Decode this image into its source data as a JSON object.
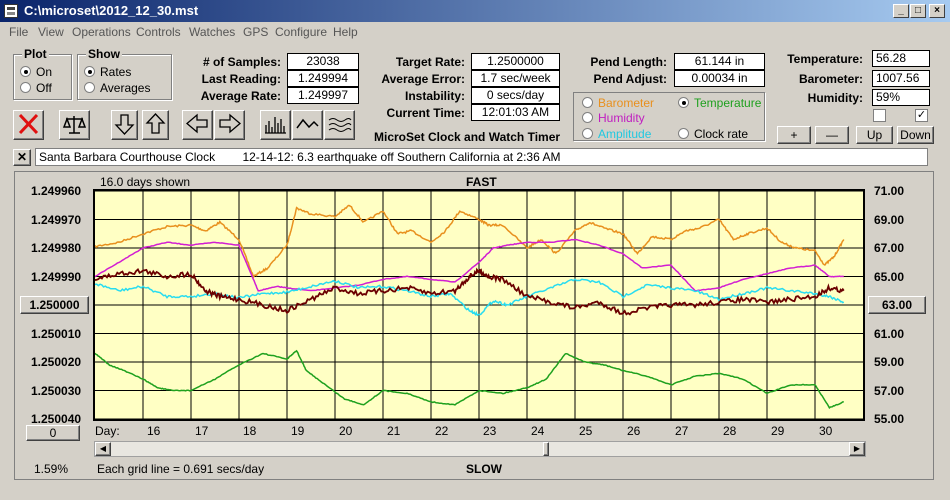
{
  "window": {
    "title": "C:\\microset\\2012_12_30.mst"
  },
  "menu": [
    "File",
    "View",
    "Operations",
    "Controls",
    "Watches",
    "GPS",
    "Configure",
    "Help"
  ],
  "plot_group": {
    "label": "Plot",
    "on": "On",
    "off": "Off",
    "selected": "On"
  },
  "show_group": {
    "label": "Show",
    "rates": "Rates",
    "averages": "Averages",
    "selected": "Rates"
  },
  "stats": {
    "samples_label": "# of Samples:",
    "samples": "23038",
    "last_reading_label": "Last Reading:",
    "last_reading": "1.249994",
    "average_rate_label": "Average Rate:",
    "average_rate": "1.249997",
    "target_rate_label": "Target Rate:",
    "target_rate": "1.2500000",
    "average_error_label": "Average Error:",
    "average_error": "1.7 sec/week",
    "instability_label": "Instability:",
    "instability": "0 secs/day",
    "current_time_label": "Current Time:",
    "current_time": "12:01:03 AM",
    "pend_length_label": "Pend Length:",
    "pend_length": "61.144 in",
    "pend_adjust_label": "Pend Adjust:",
    "pend_adjust": "0.00034 in",
    "temperature_label": "Temperature:",
    "temperature": "56.28",
    "barometer_label": "Barometer:",
    "barometer": "1007.56",
    "humidity_label": "Humidity:",
    "humidity": "59%"
  },
  "app_name": "MicroSet Clock and Watch Timer",
  "aux_select": {
    "barometer": "Barometer",
    "temperature": "Temperature",
    "humidity": "Humidity",
    "amplitude": "Amplitude",
    "clock_rate": "Clock rate",
    "selected": "Temperature"
  },
  "aux_buttons": {
    "plus": "+",
    "minus": "—",
    "up": "Up",
    "down": "Down"
  },
  "note": {
    "clock": "Santa Barbara Courthouse Clock",
    "text": "12-14-12: 6.3 earthquake off Southern California at 2:36 AM"
  },
  "plot": {
    "days_shown": "16.0 days shown",
    "fast_label": "FAST",
    "slow_label": "SLOW",
    "center_value": "1.250000",
    "right_center_value": "63.00",
    "x_offset_value": "0",
    "percent": "1.59%",
    "grid_note": "Each grid line = 0.691 secs/day",
    "day_prefix": "Day:"
  },
  "colors": {
    "background": "#ffffc4",
    "rate": "#6b0000",
    "temperature": "#1ea01e",
    "humidity": "#d21ed2",
    "amplitude": "#28dcf0",
    "barometer": "#e8901e"
  },
  "chart_data": {
    "type": "line",
    "left_axis": {
      "ticks": [
        "1.249960",
        "1.249970",
        "1.249980",
        "1.249990",
        "1.250000",
        "1.250010",
        "1.250020",
        "1.250030",
        "1.250040"
      ],
      "range": [
        1.24996,
        1.25004
      ]
    },
    "right_axis": {
      "ticks": [
        "71.00",
        "69.00",
        "67.00",
        "65.00",
        "63.00",
        "61.00",
        "59.00",
        "57.00",
        "55.00"
      ],
      "range": [
        55,
        71
      ]
    },
    "x": {
      "ticks": [
        16,
        17,
        18,
        19,
        20,
        21,
        22,
        23,
        24,
        25,
        26,
        27,
        28,
        29,
        30
      ],
      "range": [
        15.0,
        31.0
      ]
    },
    "series": [
      {
        "key": "barometer",
        "axis": "right",
        "values": [
          [
            15.0,
            67.1
          ],
          [
            15.5,
            67.4
          ],
          [
            16.0,
            68.0
          ],
          [
            16.5,
            68.5
          ],
          [
            17.0,
            68.6
          ],
          [
            17.3,
            68.2
          ],
          [
            17.6,
            68.8
          ],
          [
            18.0,
            67.6
          ],
          [
            18.3,
            65.0
          ],
          [
            18.6,
            65.6
          ],
          [
            19.0,
            67.2
          ],
          [
            19.2,
            69.8
          ],
          [
            19.5,
            69.4
          ],
          [
            20.0,
            69.2
          ],
          [
            20.3,
            70.0
          ],
          [
            20.6,
            68.8
          ],
          [
            21.0,
            69.6
          ],
          [
            21.3,
            68.0
          ],
          [
            21.6,
            68.2
          ],
          [
            22.0,
            67.4
          ],
          [
            22.3,
            68.2
          ],
          [
            22.6,
            69.6
          ],
          [
            23.0,
            69.0
          ],
          [
            23.2,
            68.6
          ],
          [
            23.5,
            68.6
          ],
          [
            24.0,
            67.0
          ],
          [
            24.3,
            67.6
          ],
          [
            24.6,
            66.6
          ],
          [
            25.0,
            68.2
          ],
          [
            25.3,
            68.8
          ],
          [
            25.6,
            68.4
          ],
          [
            26.0,
            68.0
          ],
          [
            26.3,
            66.6
          ],
          [
            26.6,
            67.8
          ],
          [
            27.0,
            67.6
          ],
          [
            27.3,
            68.2
          ],
          [
            27.6,
            68.4
          ],
          [
            28.0,
            69.0
          ],
          [
            28.3,
            67.6
          ],
          [
            28.6,
            68.0
          ],
          [
            29.0,
            68.4
          ],
          [
            29.3,
            67.4
          ],
          [
            29.6,
            67.0
          ],
          [
            30.0,
            66.8
          ],
          [
            30.2,
            65.8
          ],
          [
            30.4,
            66.4
          ],
          [
            30.6,
            67.6
          ]
        ]
      },
      {
        "key": "humidity",
        "axis": "right",
        "values": [
          [
            15.0,
            65.0
          ],
          [
            15.5,
            66.0
          ],
          [
            16.0,
            67.0
          ],
          [
            16.5,
            67.4
          ],
          [
            17.0,
            67.2
          ],
          [
            17.5,
            67.4
          ],
          [
            18.0,
            67.2
          ],
          [
            18.2,
            65.6
          ],
          [
            18.4,
            64.0
          ],
          [
            18.8,
            64.3
          ],
          [
            19.0,
            64.2
          ],
          [
            19.5,
            64.0
          ],
          [
            20.0,
            64.2
          ],
          [
            20.5,
            64.4
          ],
          [
            21.0,
            64.8
          ],
          [
            21.5,
            65.0
          ],
          [
            22.0,
            64.8
          ],
          [
            22.5,
            64.6
          ],
          [
            23.0,
            66.0
          ],
          [
            23.3,
            67.0
          ],
          [
            23.6,
            67.2
          ],
          [
            24.0,
            67.4
          ],
          [
            24.5,
            67.4
          ],
          [
            25.0,
            67.6
          ],
          [
            25.5,
            67.2
          ],
          [
            26.0,
            66.6
          ],
          [
            26.4,
            65.6
          ],
          [
            27.0,
            65.8
          ],
          [
            27.5,
            64.0
          ],
          [
            28.0,
            64.2
          ],
          [
            28.5,
            64.8
          ],
          [
            29.0,
            65.2
          ],
          [
            29.5,
            65.6
          ],
          [
            30.0,
            65.8
          ],
          [
            30.3,
            65.0
          ],
          [
            30.6,
            65.0
          ]
        ]
      },
      {
        "key": "amplitude",
        "axis": "right",
        "values": [
          [
            15.0,
            64.5
          ],
          [
            15.5,
            64.0
          ],
          [
            16.0,
            64.3
          ],
          [
            16.5,
            63.6
          ],
          [
            17.0,
            63.6
          ],
          [
            17.5,
            63.8
          ],
          [
            18.0,
            63.5
          ],
          [
            18.5,
            63.8
          ],
          [
            19.0,
            63.9
          ],
          [
            19.5,
            64.3
          ],
          [
            20.0,
            64.7
          ],
          [
            20.5,
            64.2
          ],
          [
            21.0,
            64.3
          ],
          [
            21.5,
            64.0
          ],
          [
            22.0,
            63.6
          ],
          [
            22.4,
            63.8
          ],
          [
            22.8,
            62.6
          ],
          [
            23.0,
            62.3
          ],
          [
            23.3,
            63.3
          ],
          [
            23.6,
            63.0
          ],
          [
            24.0,
            63.6
          ],
          [
            24.5,
            64.2
          ],
          [
            25.0,
            64.8
          ],
          [
            25.5,
            64.6
          ],
          [
            26.0,
            63.6
          ],
          [
            26.5,
            64.4
          ],
          [
            27.0,
            64.2
          ],
          [
            27.5,
            64.0
          ],
          [
            28.0,
            63.4
          ],
          [
            28.5,
            63.8
          ],
          [
            29.0,
            64.2
          ],
          [
            29.5,
            64.0
          ],
          [
            30.0,
            63.8
          ],
          [
            30.3,
            63.6
          ],
          [
            30.6,
            63.2
          ]
        ]
      },
      {
        "key": "rate",
        "axis": "left",
        "values": [
          [
            15.0,
            1.249991
          ],
          [
            15.5,
            1.249989
          ],
          [
            16.0,
            1.249988
          ],
          [
            16.5,
            1.24999
          ],
          [
            17.0,
            1.249989
          ],
          [
            17.3,
            1.249995
          ],
          [
            17.6,
            1.249997
          ],
          [
            18.0,
            1.249998
          ],
          [
            18.5,
            1.25
          ],
          [
            19.0,
            1.250002
          ],
          [
            19.5,
            1.249998
          ],
          [
            20.0,
            1.249994
          ],
          [
            20.5,
            1.249996
          ],
          [
            21.0,
            1.249995
          ],
          [
            21.5,
            1.249994
          ],
          [
            22.0,
            1.249996
          ],
          [
            22.5,
            1.249995
          ],
          [
            22.8,
            1.24999
          ],
          [
            23.0,
            1.249988
          ],
          [
            23.2,
            1.24999
          ],
          [
            23.5,
            1.249991
          ],
          [
            24.0,
            1.249997
          ],
          [
            24.5,
            1.249999
          ],
          [
            25.0,
            1.250001
          ],
          [
            25.5,
            1.249999
          ],
          [
            26.0,
            1.250003
          ],
          [
            26.5,
            1.250001
          ],
          [
            27.0,
            1.25
          ],
          [
            27.5,
            1.25
          ],
          [
            28.0,
            1.249999
          ],
          [
            28.5,
            1.249998
          ],
          [
            29.0,
            1.249999
          ],
          [
            29.5,
            1.249998
          ],
          [
            30.0,
            1.249997
          ],
          [
            30.3,
            1.249994
          ],
          [
            30.6,
            1.249995
          ]
        ]
      },
      {
        "key": "temperature",
        "axis": "right",
        "values": [
          [
            15.0,
            59.6
          ],
          [
            15.3,
            58.8
          ],
          [
            15.6,
            58.4
          ],
          [
            16.0,
            57.8
          ],
          [
            16.3,
            57.2
          ],
          [
            16.6,
            57.0
          ],
          [
            17.0,
            57.0
          ],
          [
            17.5,
            57.8
          ],
          [
            18.0,
            58.8
          ],
          [
            18.5,
            59.6
          ],
          [
            19.0,
            59.2
          ],
          [
            19.2,
            59.8
          ],
          [
            19.4,
            58.4
          ],
          [
            19.8,
            57.4
          ],
          [
            20.2,
            56.4
          ],
          [
            20.6,
            56.0
          ],
          [
            21.0,
            57.0
          ],
          [
            21.5,
            56.8
          ],
          [
            22.0,
            56.2
          ],
          [
            22.5,
            56.0
          ],
          [
            23.0,
            57.0
          ],
          [
            23.5,
            56.8
          ],
          [
            24.0,
            57.2
          ],
          [
            24.4,
            57.8
          ],
          [
            24.8,
            59.6
          ],
          [
            25.2,
            59.0
          ],
          [
            25.6,
            58.8
          ],
          [
            26.0,
            58.4
          ],
          [
            26.5,
            58.0
          ],
          [
            27.0,
            57.4
          ],
          [
            27.5,
            58.0
          ],
          [
            28.0,
            58.2
          ],
          [
            28.5,
            57.8
          ],
          [
            29.0,
            56.8
          ],
          [
            29.5,
            57.4
          ],
          [
            30.0,
            57.4
          ],
          [
            30.3,
            55.8
          ],
          [
            30.6,
            56.2
          ]
        ]
      }
    ]
  }
}
